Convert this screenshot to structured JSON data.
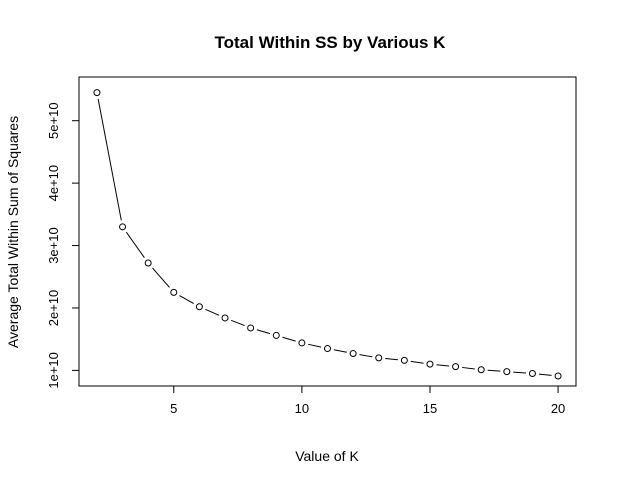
{
  "chart_data": {
    "type": "line",
    "title": "Total Within SS by Various K",
    "xlabel": "Value of K",
    "ylabel": "Average Total Within Sum of Squares",
    "xlim": [
      1.3,
      20.7
    ],
    "ylim": [
      7500000000.0,
      57000000000.0
    ],
    "x_ticks": [
      5,
      10,
      15,
      20
    ],
    "x_tick_labels": [
      "5",
      "10",
      "15",
      "20"
    ],
    "y_ticks": [
      10000000000.0,
      20000000000.0,
      30000000000.0,
      40000000000.0,
      50000000000.0
    ],
    "y_tick_labels": [
      "1e+10",
      "2e+10",
      "3e+10",
      "4e+10",
      "5e+10"
    ],
    "grid": false,
    "legend": "none",
    "marker": "open-circle",
    "series": [
      {
        "x": [
          2,
          3,
          4,
          5,
          6,
          7,
          8,
          9,
          10,
          11,
          12,
          13,
          14,
          15,
          16,
          17,
          18,
          19,
          20
        ],
        "values": [
          54500000000.0,
          33000000000.0,
          27200000000.0,
          22500000000.0,
          20200000000.0,
          18400000000.0,
          16800000000.0,
          15600000000.0,
          14400000000.0,
          13500000000.0,
          12700000000.0,
          12000000000.0,
          11600000000.0,
          11000000000.0,
          10600000000.0,
          10100000000.0,
          9800000000.0,
          9500000000.0,
          9100000000.0
        ]
      }
    ]
  }
}
